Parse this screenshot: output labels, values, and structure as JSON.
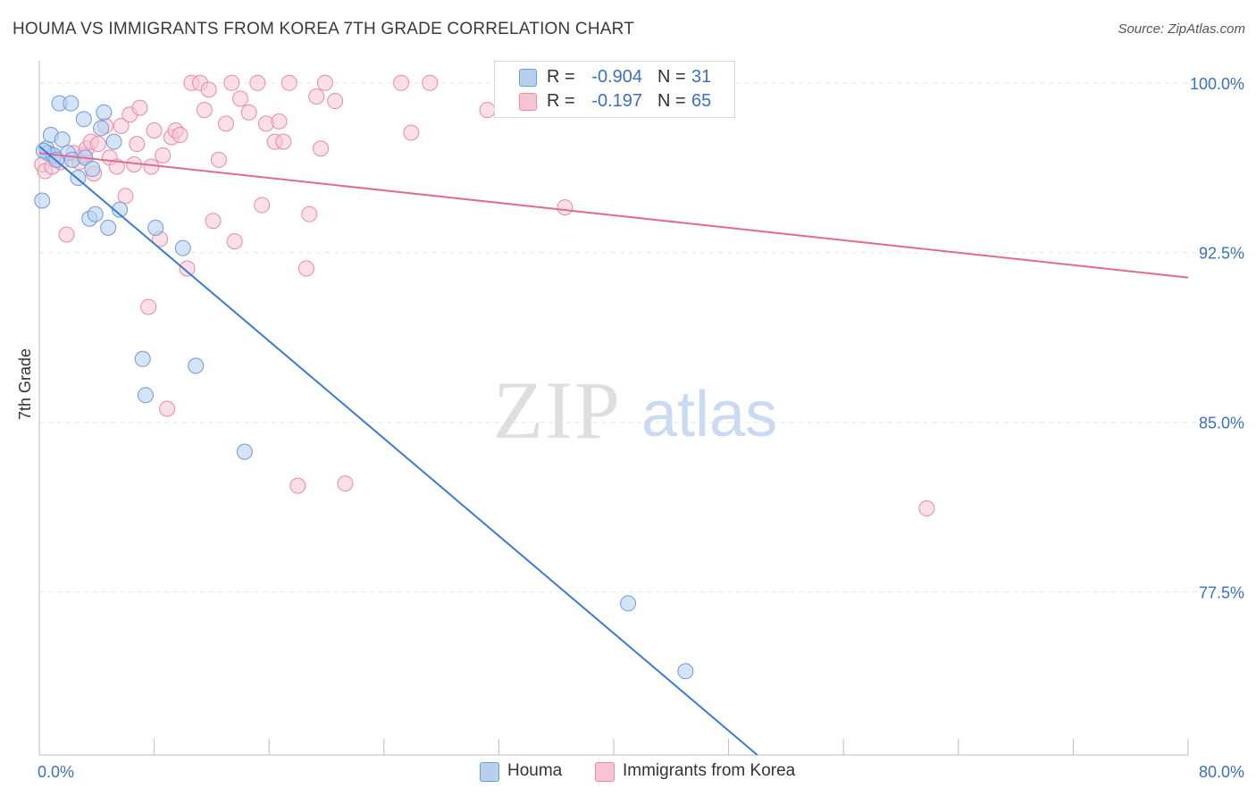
{
  "header": {
    "title": "HOUMA VS IMMIGRANTS FROM KOREA 7TH GRADE CORRELATION CHART",
    "source": "Source: ZipAtlas.com"
  },
  "watermark": {
    "zip": "ZIP",
    "atlas": "atlas"
  },
  "legend": {
    "r_label": "R =",
    "n_label": "N =",
    "rows": [
      {
        "r": "-0.904",
        "n": "31"
      },
      {
        "r": "-0.197",
        "n": "65"
      }
    ]
  },
  "colors": {
    "houma_fill": "#b8d0f0",
    "houma_stroke": "#6e9ad8",
    "houma_line": "#3a7ad6",
    "korea_fill": "#f7c4d4",
    "korea_stroke": "#e88aa8",
    "korea_line": "#e06a94",
    "tick_label": "#3a6fc4",
    "grid": "#e6e6e6"
  },
  "chart_data": {
    "type": "scatter",
    "title": "HOUMA VS IMMIGRANTS FROM KOREA 7TH GRADE CORRELATION CHART",
    "xlabel": "",
    "ylabel": "7th Grade",
    "xlim": [
      0,
      80
    ],
    "ylim": [
      70.3,
      100.9
    ],
    "x_tick_labels": [
      "0.0%",
      "80.0%"
    ],
    "y_ticks": [
      100,
      92.5,
      85,
      77.5
    ],
    "y_tick_labels": [
      "100.0%",
      "92.5%",
      "85.0%",
      "77.5%"
    ],
    "grid": true,
    "legend_position": "top-center",
    "series": [
      {
        "name": "Houma",
        "R": -0.904,
        "N": 31,
        "points": [
          [
            0.2,
            94.8
          ],
          [
            0.5,
            97.1
          ],
          [
            0.6,
            96.9
          ],
          [
            0.8,
            97.7
          ],
          [
            1.0,
            96.8
          ],
          [
            1.4,
            99.1
          ],
          [
            1.6,
            97.5
          ],
          [
            2.0,
            96.9
          ],
          [
            2.3,
            96.6
          ],
          [
            2.2,
            99.1
          ],
          [
            2.7,
            95.8
          ],
          [
            3.1,
            98.4
          ],
          [
            3.2,
            96.7
          ],
          [
            3.5,
            94.0
          ],
          [
            3.7,
            96.2
          ],
          [
            3.9,
            94.2
          ],
          [
            4.3,
            98.0
          ],
          [
            4.5,
            98.7
          ],
          [
            4.8,
            93.6
          ],
          [
            5.2,
            97.4
          ],
          [
            5.6,
            94.4
          ],
          [
            8.1,
            93.6
          ],
          [
            10.0,
            92.7
          ],
          [
            7.2,
            87.8
          ],
          [
            7.4,
            86.2
          ],
          [
            10.9,
            87.5
          ],
          [
            14.3,
            83.7
          ],
          [
            41.0,
            77.0
          ],
          [
            45.0,
            74.0
          ],
          [
            0.3,
            97.0
          ],
          [
            1.2,
            96.6
          ]
        ],
        "trend": {
          "x0": 0.0,
          "y0": 97.2,
          "x1": 50.0,
          "y1": 70.3
        }
      },
      {
        "name": "Immigrants from Korea",
        "R": -0.197,
        "N": 65,
        "points": [
          [
            0.2,
            96.4
          ],
          [
            0.4,
            96.1
          ],
          [
            0.9,
            96.3
          ],
          [
            1.1,
            96.7
          ],
          [
            1.5,
            96.5
          ],
          [
            1.9,
            93.3
          ],
          [
            2.4,
            96.9
          ],
          [
            2.8,
            96.5
          ],
          [
            3.1,
            96.8
          ],
          [
            3.3,
            97.1
          ],
          [
            3.6,
            97.4
          ],
          [
            3.8,
            96.0
          ],
          [
            4.1,
            97.3
          ],
          [
            4.6,
            98.1
          ],
          [
            4.9,
            96.7
          ],
          [
            5.4,
            96.3
          ],
          [
            5.7,
            98.1
          ],
          [
            6.0,
            95.0
          ],
          [
            6.3,
            98.6
          ],
          [
            6.6,
            96.4
          ],
          [
            6.8,
            97.3
          ],
          [
            7.0,
            98.9
          ],
          [
            7.6,
            90.1
          ],
          [
            7.8,
            96.3
          ],
          [
            8.0,
            97.9
          ],
          [
            8.4,
            93.1
          ],
          [
            8.6,
            96.8
          ],
          [
            8.9,
            85.6
          ],
          [
            9.2,
            97.6
          ],
          [
            9.5,
            97.9
          ],
          [
            9.8,
            97.7
          ],
          [
            10.3,
            91.8
          ],
          [
            10.6,
            100.0
          ],
          [
            11.2,
            100.0
          ],
          [
            11.5,
            98.8
          ],
          [
            11.8,
            99.7
          ],
          [
            12.1,
            93.9
          ],
          [
            12.5,
            96.6
          ],
          [
            13.0,
            98.2
          ],
          [
            13.4,
            100.0
          ],
          [
            13.6,
            93.0
          ],
          [
            14.0,
            99.3
          ],
          [
            14.6,
            98.7
          ],
          [
            15.2,
            100.0
          ],
          [
            15.5,
            94.6
          ],
          [
            15.8,
            98.2
          ],
          [
            16.4,
            97.4
          ],
          [
            16.7,
            98.3
          ],
          [
            17.0,
            97.4
          ],
          [
            17.4,
            100.0
          ],
          [
            18.0,
            82.2
          ],
          [
            18.6,
            91.8
          ],
          [
            18.8,
            94.2
          ],
          [
            19.3,
            99.4
          ],
          [
            19.6,
            97.1
          ],
          [
            19.9,
            100.0
          ],
          [
            20.6,
            99.2
          ],
          [
            21.3,
            82.3
          ],
          [
            25.2,
            100.0
          ],
          [
            25.9,
            97.8
          ],
          [
            27.2,
            100.0
          ],
          [
            31.2,
            98.8
          ],
          [
            36.6,
            94.5
          ],
          [
            40.8,
            100.0
          ],
          [
            61.8,
            81.2
          ]
        ],
        "trend": {
          "x0": 0.0,
          "y0": 96.9,
          "x1": 80.0,
          "y1": 91.4
        }
      }
    ]
  },
  "bottom_legend": [
    {
      "label": "Houma"
    },
    {
      "label": "Immigrants from Korea"
    }
  ]
}
